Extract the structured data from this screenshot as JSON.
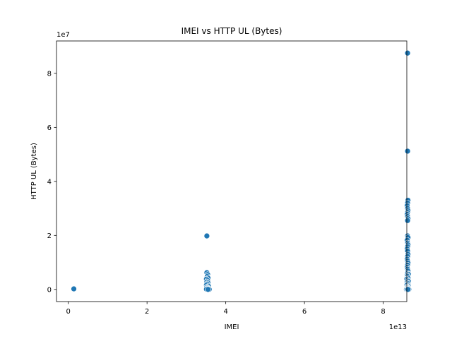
{
  "chart_data": {
    "type": "scatter",
    "title": "IMEI vs HTTP UL (Bytes)",
    "xlabel": "IMEI",
    "ylabel": "HTTP UL (Bytes)",
    "x_multiplier_label": "1e13",
    "y_multiplier_label": "1e7",
    "x_scale": 10000000000000,
    "y_scale": 10000000,
    "xlim": [
      -0.3,
      8.6
    ],
    "ylim": [
      -0.45,
      9.2
    ],
    "x_ticks": [
      0,
      2,
      4,
      6,
      8
    ],
    "x_tick_labels": [
      "0",
      "2",
      "4",
      "6",
      "8"
    ],
    "y_ticks": [
      0,
      2,
      4,
      6,
      8
    ],
    "y_tick_labels": [
      "0",
      "2",
      "4",
      "6",
      "8"
    ],
    "grid": false,
    "marker_color": "#1f77b4",
    "marker_edge_color": "#ffffff",
    "series": [
      {
        "name": "HTTP UL (Bytes)",
        "points": [
          [
            0.14,
            0.02
          ],
          [
            3.52,
            1.98
          ],
          [
            3.52,
            0.62
          ],
          [
            3.54,
            0.55
          ],
          [
            3.53,
            0.48
          ],
          [
            3.55,
            0.42
          ],
          [
            3.51,
            0.38
          ],
          [
            3.54,
            0.33
          ],
          [
            3.52,
            0.28
          ],
          [
            3.55,
            0.24
          ],
          [
            3.53,
            0.2
          ],
          [
            3.51,
            0.16
          ],
          [
            3.56,
            0.12
          ],
          [
            3.52,
            0.09
          ],
          [
            3.54,
            0.06
          ],
          [
            3.53,
            0.04
          ],
          [
            3.57,
            0.02
          ],
          [
            3.51,
            0.01
          ],
          [
            3.58,
            0.0
          ],
          [
            3.55,
            0.0
          ],
          [
            8.62,
            8.75
          ],
          [
            8.62,
            5.12
          ],
          [
            8.63,
            3.3
          ],
          [
            8.62,
            3.2
          ],
          [
            8.61,
            3.1
          ],
          [
            8.62,
            3.0
          ],
          [
            8.63,
            2.92
          ],
          [
            8.62,
            2.85
          ],
          [
            8.61,
            2.78
          ],
          [
            8.62,
            2.7
          ],
          [
            8.63,
            2.62
          ],
          [
            8.62,
            2.55
          ],
          [
            8.62,
            1.98
          ],
          [
            8.63,
            1.92
          ],
          [
            8.61,
            1.82
          ],
          [
            8.62,
            1.72
          ],
          [
            8.63,
            1.65
          ],
          [
            8.62,
            1.58
          ],
          [
            8.61,
            1.5
          ],
          [
            8.62,
            1.42
          ],
          [
            8.63,
            1.3
          ],
          [
            8.62,
            1.22
          ],
          [
            8.61,
            1.12
          ],
          [
            8.62,
            1.05
          ],
          [
            8.63,
            0.98
          ],
          [
            8.62,
            0.9
          ],
          [
            8.61,
            0.82
          ],
          [
            8.62,
            0.75
          ],
          [
            8.63,
            0.68
          ],
          [
            8.62,
            0.6
          ],
          [
            8.64,
            0.56
          ],
          [
            8.61,
            0.52
          ],
          [
            8.62,
            0.48
          ],
          [
            8.63,
            0.42
          ],
          [
            8.6,
            0.38
          ],
          [
            8.62,
            0.34
          ],
          [
            8.64,
            0.3
          ],
          [
            8.61,
            0.26
          ],
          [
            8.63,
            0.22
          ],
          [
            8.62,
            0.18
          ],
          [
            8.6,
            0.15
          ],
          [
            8.64,
            0.12
          ],
          [
            8.61,
            0.1
          ],
          [
            8.63,
            0.08
          ],
          [
            8.62,
            0.06
          ],
          [
            8.6,
            0.04
          ],
          [
            8.64,
            0.03
          ],
          [
            8.61,
            0.02
          ],
          [
            8.63,
            0.01
          ],
          [
            8.62,
            0.0
          ],
          [
            8.59,
            0.0
          ],
          [
            8.65,
            0.0
          ],
          [
            8.61,
            0.0
          ],
          [
            8.63,
            0.0
          ]
        ]
      }
    ]
  }
}
